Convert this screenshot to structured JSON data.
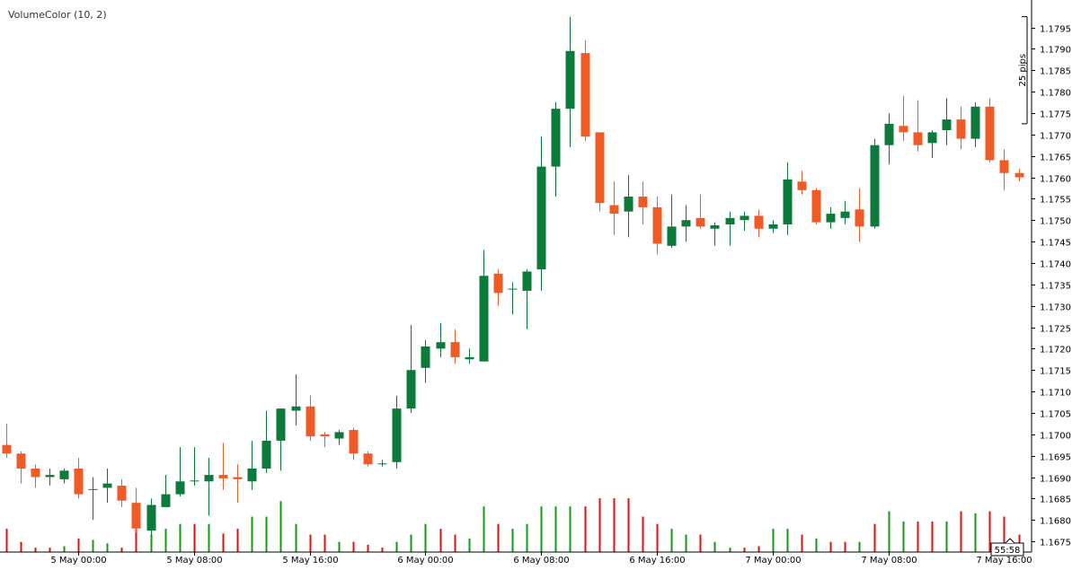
{
  "chart_data": {
    "type": "candlestick",
    "indicator_label": "VolumeColor (10, 2)",
    "ruler_label": "25 pips",
    "ruler_range": [
      1.17725,
      1.17975
    ],
    "countdown": "55:58",
    "y_range": [
      1.16725,
      1.17993
    ],
    "y_ticks": [
      "1.1675",
      "1.1680",
      "1.1685",
      "1.1690",
      "1.1695",
      "1.1700",
      "1.1705",
      "1.1710",
      "1.1715",
      "1.1720",
      "1.1725",
      "1.1730",
      "1.1735",
      "1.1740",
      "1.1745",
      "1.1750",
      "1.1755",
      "1.1760",
      "1.1765",
      "1.1770",
      "1.1775",
      "1.1780",
      "1.1785",
      "1.1790",
      "1.1795"
    ],
    "x_labels": [
      {
        "label": "5 May 00:00",
        "bar": 5
      },
      {
        "label": "5 May 08:00",
        "bar": 13
      },
      {
        "label": "5 May 16:00",
        "bar": 21
      },
      {
        "label": "6 May 00:00",
        "bar": 29
      },
      {
        "label": "6 May 08:00",
        "bar": 37
      },
      {
        "label": "6 May 16:00",
        "bar": 45
      },
      {
        "label": "7 May 00:00",
        "bar": 53
      },
      {
        "label": "7 May 08:00",
        "bar": 61
      },
      {
        "label": "7 May 16:00",
        "bar": 69
      }
    ],
    "colors": {
      "up": "#0b7a3b",
      "down": "#f05a24",
      "vol_up": "#129a12",
      "vol_down": "#e01010"
    },
    "candles": [
      {
        "o": 1.16975,
        "h": 1.17025,
        "l": 1.16945,
        "c": 1.16955
      },
      {
        "o": 1.16955,
        "h": 1.1696,
        "l": 1.16885,
        "c": 1.1692
      },
      {
        "o": 1.1692,
        "h": 1.1693,
        "l": 1.16875,
        "c": 1.169
      },
      {
        "o": 1.169,
        "h": 1.1692,
        "l": 1.1688,
        "c": 1.16905
      },
      {
        "o": 1.16895,
        "h": 1.1692,
        "l": 1.16885,
        "c": 1.16915
      },
      {
        "o": 1.1692,
        "h": 1.16945,
        "l": 1.1685,
        "c": 1.1686
      },
      {
        "o": 1.1687,
        "h": 1.169,
        "l": 1.168,
        "c": 1.16872
      },
      {
        "o": 1.16875,
        "h": 1.1692,
        "l": 1.1684,
        "c": 1.16885
      },
      {
        "o": 1.1688,
        "h": 1.16895,
        "l": 1.1683,
        "c": 1.16845
      },
      {
        "o": 1.1684,
        "h": 1.16875,
        "l": 1.1677,
        "c": 1.1678
      },
      {
        "o": 1.16775,
        "h": 1.1685,
        "l": 1.1676,
        "c": 1.16835
      },
      {
        "o": 1.1683,
        "h": 1.16905,
        "l": 1.1683,
        "c": 1.1686
      },
      {
        "o": 1.1686,
        "h": 1.1697,
        "l": 1.16855,
        "c": 1.1689
      },
      {
        "o": 1.1689,
        "h": 1.1697,
        "l": 1.1688,
        "c": 1.16892
      },
      {
        "o": 1.1689,
        "h": 1.16945,
        "l": 1.1681,
        "c": 1.16905
      },
      {
        "o": 1.16905,
        "h": 1.1698,
        "l": 1.1687,
        "c": 1.16897
      },
      {
        "o": 1.169,
        "h": 1.1693,
        "l": 1.1684,
        "c": 1.16895
      },
      {
        "o": 1.1689,
        "h": 1.16985,
        "l": 1.1687,
        "c": 1.1692
      },
      {
        "o": 1.1692,
        "h": 1.17055,
        "l": 1.1691,
        "c": 1.16985
      },
      {
        "o": 1.16985,
        "h": 1.1706,
        "l": 1.16915,
        "c": 1.1706
      },
      {
        "o": 1.17055,
        "h": 1.1714,
        "l": 1.1702,
        "c": 1.17065
      },
      {
        "o": 1.17065,
        "h": 1.1709,
        "l": 1.16985,
        "c": 1.16995
      },
      {
        "o": 1.17,
        "h": 1.17005,
        "l": 1.1697,
        "c": 1.16995
      },
      {
        "o": 1.1699,
        "h": 1.1701,
        "l": 1.16975,
        "c": 1.17005
      },
      {
        "o": 1.1701,
        "h": 1.17015,
        "l": 1.1694,
        "c": 1.16955
      },
      {
        "o": 1.16955,
        "h": 1.1696,
        "l": 1.16925,
        "c": 1.1693
      },
      {
        "o": 1.1693,
        "h": 1.1694,
        "l": 1.16925,
        "c": 1.16932
      },
      {
        "o": 1.16935,
        "h": 1.1709,
        "l": 1.1692,
        "c": 1.1706
      },
      {
        "o": 1.1706,
        "h": 1.17255,
        "l": 1.1705,
        "c": 1.1715
      },
      {
        "o": 1.17155,
        "h": 1.1722,
        "l": 1.1712,
        "c": 1.17205
      },
      {
        "o": 1.172,
        "h": 1.1726,
        "l": 1.1718,
        "c": 1.17215
      },
      {
        "o": 1.17215,
        "h": 1.17245,
        "l": 1.17165,
        "c": 1.1718
      },
      {
        "o": 1.17175,
        "h": 1.172,
        "l": 1.17165,
        "c": 1.1718
      },
      {
        "o": 1.1717,
        "h": 1.1743,
        "l": 1.1717,
        "c": 1.1737
      },
      {
        "o": 1.17375,
        "h": 1.17385,
        "l": 1.173,
        "c": 1.1733
      },
      {
        "o": 1.1734,
        "h": 1.17355,
        "l": 1.1728,
        "c": 1.1734
      },
      {
        "o": 1.17335,
        "h": 1.17385,
        "l": 1.17245,
        "c": 1.1738
      },
      {
        "o": 1.17385,
        "h": 1.17695,
        "l": 1.17335,
        "c": 1.17625
      },
      {
        "o": 1.17625,
        "h": 1.17775,
        "l": 1.17555,
        "c": 1.1776
      },
      {
        "o": 1.1776,
        "h": 1.17975,
        "l": 1.1767,
        "c": 1.17895
      },
      {
        "o": 1.1789,
        "h": 1.1792,
        "l": 1.17685,
        "c": 1.17695
      },
      {
        "o": 1.17705,
        "h": 1.17705,
        "l": 1.1752,
        "c": 1.1754
      },
      {
        "o": 1.17535,
        "h": 1.1759,
        "l": 1.17465,
        "c": 1.17515
      },
      {
        "o": 1.1752,
        "h": 1.17605,
        "l": 1.1746,
        "c": 1.17555
      },
      {
        "o": 1.17555,
        "h": 1.1759,
        "l": 1.1749,
        "c": 1.1753
      },
      {
        "o": 1.1753,
        "h": 1.17555,
        "l": 1.1742,
        "c": 1.17445
      },
      {
        "o": 1.1744,
        "h": 1.1756,
        "l": 1.17435,
        "c": 1.17485
      },
      {
        "o": 1.17485,
        "h": 1.17535,
        "l": 1.1745,
        "c": 1.175
      },
      {
        "o": 1.17505,
        "h": 1.1756,
        "l": 1.1748,
        "c": 1.17485
      },
      {
        "o": 1.1748,
        "h": 1.17495,
        "l": 1.1744,
        "c": 1.17488
      },
      {
        "o": 1.1749,
        "h": 1.1752,
        "l": 1.1744,
        "c": 1.17505
      },
      {
        "o": 1.175,
        "h": 1.1752,
        "l": 1.17475,
        "c": 1.1751
      },
      {
        "o": 1.1751,
        "h": 1.17525,
        "l": 1.1746,
        "c": 1.1748
      },
      {
        "o": 1.1748,
        "h": 1.175,
        "l": 1.1747,
        "c": 1.1749
      },
      {
        "o": 1.1749,
        "h": 1.17635,
        "l": 1.17465,
        "c": 1.17595
      },
      {
        "o": 1.1759,
        "h": 1.17615,
        "l": 1.1756,
        "c": 1.1757
      },
      {
        "o": 1.1757,
        "h": 1.17575,
        "l": 1.1749,
        "c": 1.17495
      },
      {
        "o": 1.17495,
        "h": 1.1753,
        "l": 1.1748,
        "c": 1.17515
      },
      {
        "o": 1.17505,
        "h": 1.17545,
        "l": 1.1749,
        "c": 1.1752
      },
      {
        "o": 1.17525,
        "h": 1.17575,
        "l": 1.1745,
        "c": 1.17485
      },
      {
        "o": 1.17485,
        "h": 1.1769,
        "l": 1.1748,
        "c": 1.17675
      },
      {
        "o": 1.17675,
        "h": 1.1775,
        "l": 1.1763,
        "c": 1.17725
      },
      {
        "o": 1.1772,
        "h": 1.1779,
        "l": 1.17685,
        "c": 1.17705
      },
      {
        "o": 1.17705,
        "h": 1.1778,
        "l": 1.1766,
        "c": 1.17675
      },
      {
        "o": 1.1768,
        "h": 1.1771,
        "l": 1.17645,
        "c": 1.17705
      },
      {
        "o": 1.1771,
        "h": 1.17785,
        "l": 1.17675,
        "c": 1.17735
      },
      {
        "o": 1.17735,
        "h": 1.17765,
        "l": 1.17665,
        "c": 1.1769
      },
      {
        "o": 1.1769,
        "h": 1.17775,
        "l": 1.1767,
        "c": 1.17765
      },
      {
        "o": 1.17765,
        "h": 1.17785,
        "l": 1.17635,
        "c": 1.1764
      },
      {
        "o": 1.1764,
        "h": 1.17665,
        "l": 1.1757,
        "c": 1.1761
      },
      {
        "o": 1.1761,
        "h": 1.1762,
        "l": 1.1759,
        "c": 1.176
      }
    ],
    "volumes": [
      {
        "v": 0.48,
        "up": false
      },
      {
        "v": 0.21,
        "up": false
      },
      {
        "v": 0.09,
        "up": false
      },
      {
        "v": 0.09,
        "up": false
      },
      {
        "v": 0.12,
        "up": true
      },
      {
        "v": 0.28,
        "up": false
      },
      {
        "v": 0.25,
        "up": true
      },
      {
        "v": 0.18,
        "up": true
      },
      {
        "v": 0.09,
        "up": false
      },
      {
        "v": 0.48,
        "up": false
      },
      {
        "v": 0.36,
        "up": true
      },
      {
        "v": 0.48,
        "up": true
      },
      {
        "v": 0.58,
        "up": true
      },
      {
        "v": 0.58,
        "up": false
      },
      {
        "v": 0.58,
        "up": true
      },
      {
        "v": 0.38,
        "up": false
      },
      {
        "v": 0.48,
        "up": false
      },
      {
        "v": 0.73,
        "up": true
      },
      {
        "v": 0.73,
        "up": true
      },
      {
        "v": 1.05,
        "up": true
      },
      {
        "v": 0.58,
        "up": true
      },
      {
        "v": 0.36,
        "up": false
      },
      {
        "v": 0.36,
        "up": false
      },
      {
        "v": 0.21,
        "up": true
      },
      {
        "v": 0.21,
        "up": false
      },
      {
        "v": 0.15,
        "up": false
      },
      {
        "v": 0.09,
        "up": false
      },
      {
        "v": 0.21,
        "up": true
      },
      {
        "v": 0.36,
        "up": true
      },
      {
        "v": 0.58,
        "up": true
      },
      {
        "v": 0.48,
        "up": false
      },
      {
        "v": 0.36,
        "up": false
      },
      {
        "v": 0.28,
        "up": true
      },
      {
        "v": 0.94,
        "up": true
      },
      {
        "v": 0.58,
        "up": false
      },
      {
        "v": 0.48,
        "up": true
      },
      {
        "v": 0.58,
        "up": true
      },
      {
        "v": 0.94,
        "up": true
      },
      {
        "v": 0.94,
        "up": true
      },
      {
        "v": 0.94,
        "up": true
      },
      {
        "v": 0.94,
        "up": false
      },
      {
        "v": 1.11,
        "up": false
      },
      {
        "v": 1.11,
        "up": false
      },
      {
        "v": 1.11,
        "up": false
      },
      {
        "v": 0.73,
        "up": false
      },
      {
        "v": 0.58,
        "up": false
      },
      {
        "v": 0.48,
        "up": true
      },
      {
        "v": 0.36,
        "up": true
      },
      {
        "v": 0.36,
        "up": false
      },
      {
        "v": 0.21,
        "up": true
      },
      {
        "v": 0.09,
        "up": true
      },
      {
        "v": 0.09,
        "up": false
      },
      {
        "v": 0.12,
        "up": false
      },
      {
        "v": 0.48,
        "up": true
      },
      {
        "v": 0.48,
        "up": true
      },
      {
        "v": 0.36,
        "up": false
      },
      {
        "v": 0.28,
        "up": true
      },
      {
        "v": 0.21,
        "up": false
      },
      {
        "v": 0.21,
        "up": false
      },
      {
        "v": 0.21,
        "up": true
      },
      {
        "v": 0.58,
        "up": false
      },
      {
        "v": 0.84,
        "up": true
      },
      {
        "v": 0.63,
        "up": true
      },
      {
        "v": 0.63,
        "up": false
      },
      {
        "v": 0.63,
        "up": false
      },
      {
        "v": 0.63,
        "up": true
      },
      {
        "v": 0.84,
        "up": false
      },
      {
        "v": 0.8,
        "up": true
      },
      {
        "v": 0.84,
        "up": false
      },
      {
        "v": 0.73,
        "up": false
      },
      {
        "v": 0.36,
        "up": false
      }
    ]
  }
}
